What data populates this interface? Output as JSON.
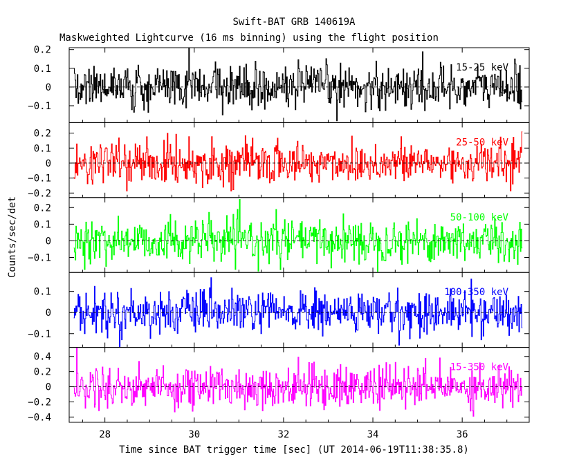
{
  "chart_data": {
    "type": "line",
    "title": "Swift-BAT GRB 140619A",
    "subtitle": "Maskweighted Lightcurve (16 ms binning) using the flight position",
    "xlabel": "Time since BAT trigger time [sec] (UT 2014-06-19T11:38:35.8)",
    "ylabel": "Counts/sec/det",
    "xlim": [
      27.2,
      37.5
    ],
    "x_ticks": [
      28,
      30,
      32,
      34,
      36
    ],
    "x_ticklabels": [
      "28",
      "30",
      "32",
      "34",
      "36"
    ],
    "bin_width_s": 0.016,
    "grid": false,
    "panels": [
      {
        "name": "15-25 keV",
        "color": "#000000",
        "ylim": [
          -0.19,
          0.21
        ],
        "yticks": [
          -0.1,
          0,
          0.1,
          0.2
        ],
        "yticklabels": [
          "−0.1",
          "0",
          "0.1",
          "0.2"
        ],
        "noise_sigma": 0.06
      },
      {
        "name": "25-50 keV",
        "color": "#ff0000",
        "ylim": [
          -0.23,
          0.27
        ],
        "yticks": [
          -0.2,
          -0.1,
          0,
          0.1,
          0.2
        ],
        "yticklabels": [
          "−0.2",
          "−0.1",
          "0",
          "0.1",
          "0.2"
        ],
        "noise_sigma": 0.07
      },
      {
        "name": "50-100 keV",
        "color": "#00ff00",
        "ylim": [
          -0.19,
          0.26
        ],
        "yticks": [
          -0.1,
          0,
          0.1,
          0.2
        ],
        "yticklabels": [
          "−0.1",
          "0",
          "0.1",
          "0.2"
        ],
        "noise_sigma": 0.065
      },
      {
        "name": "100-350 keV",
        "color": "#0000ff",
        "ylim": [
          -0.165,
          0.19
        ],
        "yticks": [
          -0.1,
          0,
          0.1
        ],
        "yticklabels": [
          "−0.1",
          "0",
          "0.1"
        ],
        "noise_sigma": 0.05
      },
      {
        "name": "15-350 keV",
        "color": "#ff00ff",
        "ylim": [
          -0.47,
          0.52
        ],
        "yticks": [
          -0.4,
          -0.2,
          0,
          0.2,
          0.4
        ],
        "yticklabels": [
          "−0.4",
          "−0.2",
          "0",
          "0.2",
          "0.4"
        ],
        "noise_sigma": 0.14
      }
    ]
  }
}
